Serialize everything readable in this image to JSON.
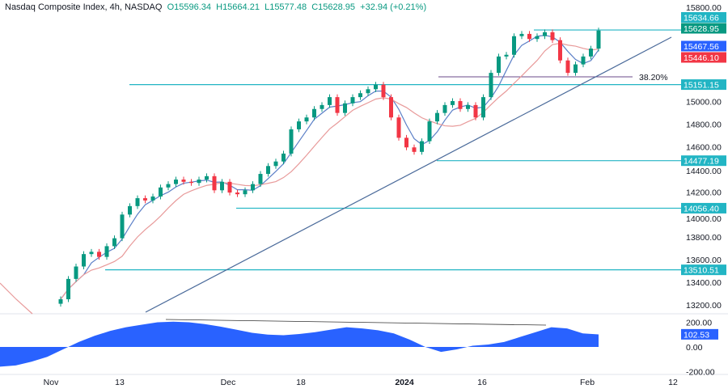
{
  "header": {
    "symbol": "Nasdaq Composite Index, 4h, NASDAQ",
    "open": "O15596.34",
    "high": "H15664.21",
    "low": "L15577.48",
    "close": "C15628.95",
    "change": "+32.94 (+0.21%)"
  },
  "chart_data": [
    {
      "type": "candlestick",
      "ylim": [
        13200,
        15800
      ],
      "y_ticks": [
        "15800.00",
        "15000.00",
        "14800.00",
        "14600.00",
        "14400.00",
        "14200.00",
        "14000.00",
        "13800.00",
        "13600.00",
        "13400.00",
        "13200.00"
      ],
      "x_ticks": [
        "Nov",
        "13",
        "Dec",
        "18",
        "2024",
        "16",
        "Feb",
        "12"
      ],
      "closes": [
        13250,
        13430,
        13540,
        13650,
        13670,
        13625,
        13720,
        13790,
        14000,
        14075,
        14145,
        14125,
        14160,
        14240,
        14270,
        14310,
        14290,
        14280,
        14310,
        14340,
        14215,
        14290,
        14195,
        14180,
        14215,
        14270,
        14360,
        14430,
        14470,
        14540,
        14755,
        14825,
        14860,
        14935,
        14970,
        15040,
        14900,
        14985,
        15040,
        15075,
        15110,
        15150,
        15040,
        14860,
        14680,
        14595,
        14555,
        14650,
        14825,
        14900,
        14970,
        15005,
        14935,
        14970,
        14860,
        15040,
        15255,
        15400,
        15415,
        15580,
        15600,
        15555,
        15580,
        15615,
        15545,
        15365,
        15255,
        15330,
        15400,
        15470,
        15630
      ],
      "levels": [
        {
          "value": 15634.66,
          "label": "15634.66"
        },
        {
          "value": 15151.15,
          "label": "15151.15"
        },
        {
          "value": 14477.19,
          "label": "14477.19"
        },
        {
          "value": 14056.4,
          "label": "14056.40"
        },
        {
          "value": 13510.51,
          "label": "13510.51"
        }
      ],
      "fib": {
        "label": "38.20%",
        "value": 15220
      },
      "price_tags": [
        {
          "label": "15628.95",
          "value": 15628.95,
          "color": "#089981"
        },
        {
          "label": "15467.56",
          "value": 15467.56,
          "color": "#2962ff"
        },
        {
          "label": "15446.10",
          "value": 15446.1,
          "color": "#f23645"
        }
      ],
      "colors": {
        "up": "#089981",
        "down": "#f23645",
        "ma_fast": "#5b7fc7",
        "ma_slow": "#e89a9a",
        "level": "#22b5c4",
        "trend": "#4a6a9a"
      }
    },
    {
      "type": "area",
      "ylim": [
        -250,
        260
      ],
      "y_ticks": [
        "200.00",
        "0.00",
        "-200.00"
      ],
      "last_label": "102.53",
      "values": [
        -160,
        -150,
        -120,
        -80,
        -20,
        40,
        90,
        130,
        160,
        180,
        200,
        205,
        200,
        185,
        165,
        140,
        115,
        100,
        95,
        105,
        120,
        140,
        160,
        150,
        135,
        110,
        60,
        0,
        -40,
        -20,
        10,
        20,
        40,
        80,
        120,
        160,
        150,
        110,
        102
      ],
      "color": "#2962ff"
    }
  ]
}
